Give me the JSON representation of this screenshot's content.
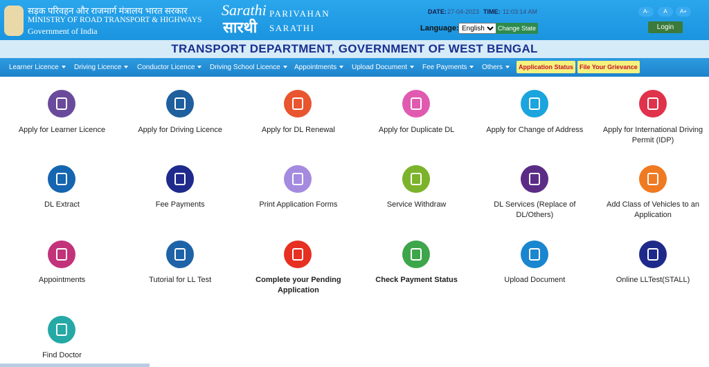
{
  "header": {
    "ministry_hindi": "सड़क परिवहन और राजमार्ग मंत्रालय भारत सरकार",
    "ministry": "MINISTRY OF ROAD TRANSPORT & HIGHWAYS",
    "government": "Government of India",
    "logo_script": "Sarathi",
    "logo_hindi": "सारथी",
    "portal_line1": "PARIVAHAN",
    "portal_line2": "SARATHI",
    "date_label": "DATE:",
    "date": "27-04-2023",
    "time_label": "TIME:",
    "time": "11:03:14 AM",
    "language_label": "Language:",
    "language": "English",
    "change_state": "Change State",
    "font_small": "A-",
    "font_normal": "A",
    "font_large": "A+",
    "login": "Login"
  },
  "banner": "TRANSPORT DEPARTMENT, GOVERNMENT OF WEST BENGAL",
  "nav": {
    "menus": [
      "Learner Licence",
      "Driving Licence",
      "Conductor Licence",
      "Driving School Licence",
      "Appointments",
      "Upload Document",
      "Fee Payments",
      "Others"
    ],
    "application_status": "Application Status",
    "grievance": "File Your Grievance"
  },
  "services": [
    "Apply for Learner Licence",
    "Apply for Driving Licence",
    "Apply for DL Renewal",
    "Apply for Duplicate DL",
    "Apply for Change of Address",
    "Apply for International Driving Permit (IDP)",
    "DL Extract",
    "Fee Payments",
    "Print Application Forms",
    "Service Withdraw",
    "DL Services (Replace of DL/Others)",
    "Add Class of Vehicles to an Application",
    "Appointments",
    "Tutorial for LL Test",
    "Complete your Pending Application",
    "Check Payment Status",
    "Upload Document",
    "Online LLTest(STALL)",
    "Find Doctor"
  ]
}
